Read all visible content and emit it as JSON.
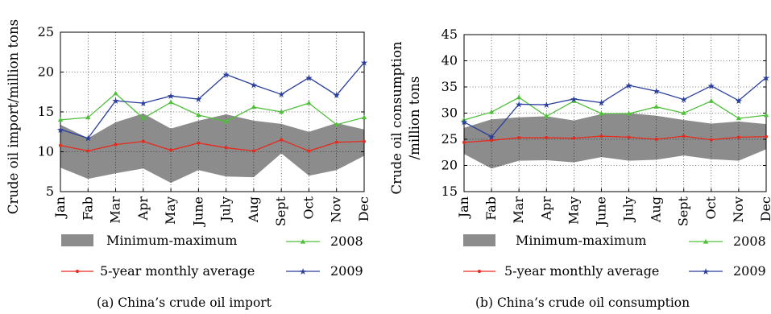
{
  "chart_data": [
    {
      "type": "line",
      "caption": "(a)  China’s crude oil import",
      "ylabel": "Crude oil import/million tons",
      "ylabel_lines": [
        "Crude oil import/million tons"
      ],
      "ylim": [
        5,
        25
      ],
      "yticks": [
        5,
        10,
        15,
        20,
        25
      ],
      "categories": [
        "Jan",
        "Fab",
        "Mar",
        "Apr",
        "May",
        "June",
        "July",
        "Aug",
        "Sept",
        "Oct",
        "Nov",
        "Dec"
      ],
      "band": {
        "name": "Minimum-maximum",
        "min": [
          8.0,
          6.6,
          7.3,
          7.9,
          6.1,
          7.7,
          6.9,
          6.8,
          9.8,
          7.0,
          7.7,
          9.5
        ],
        "max": [
          13.4,
          11.7,
          13.7,
          14.8,
          12.9,
          13.9,
          14.7,
          13.9,
          13.5,
          12.5,
          13.6,
          12.8
        ]
      },
      "series": [
        {
          "name": "5-year monthly average",
          "values": [
            10.8,
            10.1,
            10.9,
            11.3,
            10.2,
            11.1,
            10.5,
            10.1,
            11.5,
            10.1,
            11.2,
            11.3
          ]
        },
        {
          "name": "2008",
          "values": [
            14.0,
            14.3,
            17.3,
            14.2,
            16.2,
            14.6,
            13.8,
            15.6,
            15.0,
            16.1,
            13.4,
            14.3
          ]
        },
        {
          "name": "2009",
          "values": [
            12.8,
            11.7,
            16.4,
            16.1,
            17.0,
            16.6,
            19.7,
            18.4,
            17.2,
            19.3,
            17.1,
            21.2
          ]
        }
      ]
    },
    {
      "type": "line",
      "caption": "(b)  China’s crude oil consumption",
      "ylabel": "Crude oil consumption /million tons",
      "ylabel_lines": [
        "Crude oil consumption",
        "/million tons"
      ],
      "ylim": [
        15,
        45
      ],
      "yticks": [
        15,
        20,
        25,
        30,
        35,
        40,
        45
      ],
      "categories": [
        "Jan",
        "Fab",
        "Mar",
        "Apr",
        "May",
        "June",
        "July",
        "Aug",
        "Sept",
        "Oct",
        "Nov",
        "Dec"
      ],
      "band": {
        "name": "Minimum-maximum",
        "min": [
          22.2,
          19.4,
          20.9,
          21.0,
          20.6,
          21.6,
          20.9,
          21.1,
          21.9,
          21.2,
          20.9,
          23.1
        ],
        "max": [
          27.2,
          28.8,
          29.2,
          29.4,
          28.6,
          29.8,
          30.0,
          29.5,
          28.7,
          28.0,
          28.4,
          27.9
        ]
      },
      "series": [
        {
          "name": "5-year monthly average",
          "values": [
            24.4,
            24.8,
            25.3,
            25.3,
            25.2,
            25.6,
            25.4,
            25.0,
            25.6,
            24.9,
            25.4,
            25.5
          ]
        },
        {
          "name": "2008",
          "values": [
            28.7,
            30.2,
            33.0,
            29.4,
            32.3,
            29.9,
            29.9,
            31.2,
            30.0,
            32.3,
            29.0,
            29.6
          ]
        },
        {
          "name": "2009",
          "values": [
            28.3,
            25.5,
            31.7,
            31.6,
            32.7,
            32.0,
            35.3,
            34.2,
            32.6,
            35.2,
            32.4,
            36.8
          ]
        }
      ]
    }
  ],
  "legend": {
    "band_label": "Minimum-maximum",
    "avg_label": "5-year monthly average",
    "y2008_label": "2008",
    "y2009_label": "2009"
  },
  "colors": {
    "band": "#8c8c8c",
    "avg": "#e8291c",
    "y2008": "#4fbf3b",
    "y2009": "#2a3f9c"
  }
}
